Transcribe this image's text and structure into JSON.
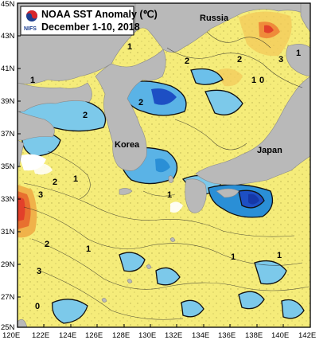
{
  "title": {
    "line1": "NOAA SST Anomaly (℃)",
    "line2": "December 1-10, 2018"
  },
  "logo": {
    "text": "NIFS",
    "icon": "nifs-taegeuk-logo"
  },
  "latitude_labels": [
    "45N",
    "43N",
    "41N",
    "39N",
    "37N",
    "35N",
    "33N",
    "31N",
    "29N",
    "27N",
    "25N"
  ],
  "longitude_labels": [
    "120E",
    "122E",
    "124E",
    "126E",
    "128E",
    "130E",
    "132E",
    "134E",
    "136E",
    "138E",
    "140E",
    "142E"
  ],
  "place_labels": {
    "russia": "Russia",
    "korea": "Korea",
    "japan": "Japan"
  },
  "contour_labels": [
    "1",
    "2",
    "3",
    "2",
    "1",
    "0",
    "2",
    "3",
    "2",
    "1",
    "2",
    "3",
    "2",
    "1",
    "0",
    "1",
    "1",
    "1",
    "1",
    "1"
  ],
  "colors": {
    "land": "#b9b9b9",
    "ocean_base": "#f5ec7a",
    "warm": "#f0b24a",
    "hot": "#e2402a",
    "cool": "#7cc9ea",
    "cold": "#2a8fd6",
    "very_cold": "#1d4fc4",
    "contour": "#222222",
    "frame": "#000000"
  }
}
